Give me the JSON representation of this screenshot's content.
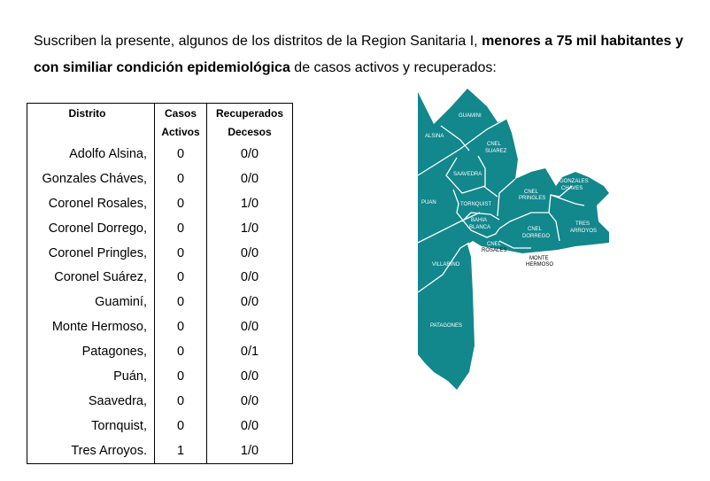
{
  "intro": {
    "text1": "Suscriben la presente, algunos de los distritos de la Region Sanitaria I, ",
    "bold1": "menores a 75 mil habitantes y con similiar condición epidemiológica",
    "text2": " de casos activos y recuperados:"
  },
  "table": {
    "headers": {
      "distrito": "Distrito",
      "casos1": "Casos",
      "casos2": "Activos",
      "rec1": "Recuperados",
      "rec2": "Decesos"
    },
    "rows": [
      {
        "d": "Adolfo Alsina,",
        "a": "0",
        "r": "0/0"
      },
      {
        "d": "Gonzales Cháves,",
        "a": "0",
        "r": "0/0"
      },
      {
        "d": "Coronel Rosales,",
        "a": "0",
        "r": "1/0"
      },
      {
        "d": "Coronel Dorrego,",
        "a": "0",
        "r": "1/0"
      },
      {
        "d": "Coronel Pringles,",
        "a": "0",
        "r": "0/0"
      },
      {
        "d": "Coronel Suárez,",
        "a": "0",
        "r": "0/0"
      },
      {
        "d": "Guaminí,",
        "a": "0",
        "r": "0/0"
      },
      {
        "d": "Monte Hermoso,",
        "a": "0",
        "r": "0/0"
      },
      {
        "d": "Patagones,",
        "a": "0",
        "r": "0/1"
      },
      {
        "d": "Puán,",
        "a": "0",
        "r": "0/0"
      },
      {
        "d": "Saavedra,",
        "a": "0",
        "r": "0/0"
      },
      {
        "d": "Tornquist,",
        "a": "0",
        "r": "0/0"
      },
      {
        "d": "Tres Arroyos.",
        "a": "1",
        "r": "1/0"
      }
    ]
  },
  "map": {
    "color": "#12878c",
    "labels": {
      "guamini": "GUAMINI",
      "alsina": "ALSINA",
      "cnel": "CNEL",
      "suarez": "SUAREZ",
      "saavedra": "SAAVEDRA",
      "gonzales": "GONZALES",
      "chaves": "CHAVES",
      "pringles": "PRINGLES",
      "puan": "PUAN",
      "tornquist": "TORNQUIST",
      "bahia": "BAHIA",
      "blanca": "BLANCA",
      "dorrego": "DORREGO",
      "tres": "TRES",
      "arroyos": "ARROYOS",
      "rosales": "ROSALES",
      "monte": "MONTE",
      "hermoso": "HERMOSO",
      "villarino": "VILLARINO",
      "patagones": "PATAGONES"
    }
  }
}
